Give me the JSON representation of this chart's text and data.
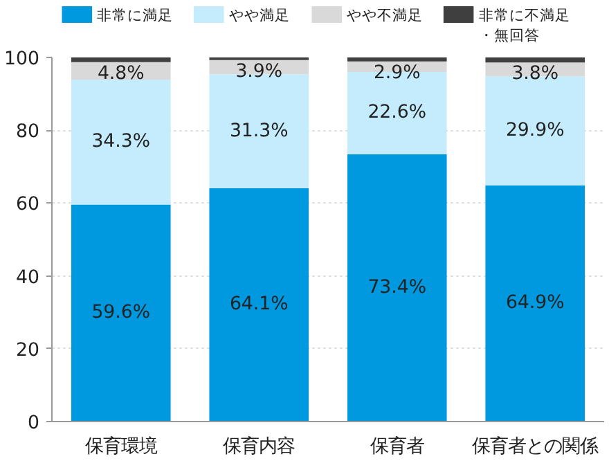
{
  "chart_data": {
    "type": "bar",
    "stacked": true,
    "categories": [
      "保育環境",
      "保育内容",
      "保育者",
      "保育者との関係"
    ],
    "series": [
      {
        "name": "非常に満足",
        "color": "#0099e0",
        "values": [
          59.6,
          64.1,
          73.4,
          64.9
        ],
        "value_labels": [
          "59.6%",
          "64.1%",
          "73.4%",
          "64.9%"
        ]
      },
      {
        "name": "やや満足",
        "color": "#c4ecfc",
        "values": [
          34.3,
          31.3,
          22.6,
          29.9
        ],
        "value_labels": [
          "34.3%",
          "31.3%",
          "22.6%",
          "29.9%"
        ]
      },
      {
        "name": "やや不満足",
        "color": "#d9d9d9",
        "values": [
          4.8,
          3.9,
          2.9,
          3.8
        ],
        "value_labels": [
          "4.8%",
          "3.9%",
          "2.9%",
          "3.8%"
        ]
      },
      {
        "name": "非常に不満足・無回答",
        "color": "#3f3f3f",
        "values": [
          1.3,
          0.7,
          1.1,
          1.4
        ]
      }
    ],
    "ylim": [
      0,
      100
    ],
    "yticks": [
      0,
      20,
      40,
      60,
      80,
      100
    ],
    "grid": "y",
    "legend": "top"
  }
}
